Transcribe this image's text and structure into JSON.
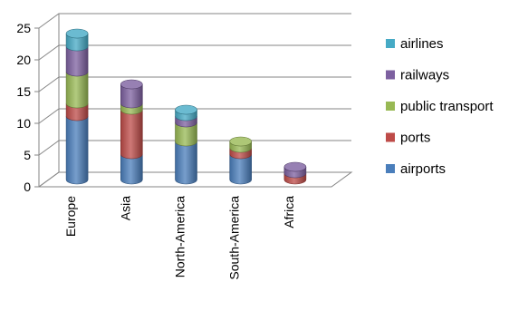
{
  "chart_data": {
    "type": "bar",
    "stacked": true,
    "categories": [
      "Europe",
      "Asia",
      "North-America",
      "South-America",
      "Africa"
    ],
    "series": [
      {
        "name": "airports",
        "values": [
          10,
          4,
          6,
          4,
          0
        ],
        "color": "#4a7ebb"
      },
      {
        "name": "ports",
        "values": [
          2,
          7,
          0,
          1,
          1
        ],
        "color": "#be4b48"
      },
      {
        "name": "public transport",
        "values": [
          5,
          1,
          3,
          1,
          0
        ],
        "color": "#98b954"
      },
      {
        "name": "railways",
        "values": [
          4,
          3,
          1,
          0,
          1
        ],
        "color": "#7d60a0"
      },
      {
        "name": "airlines",
        "values": [
          2,
          0,
          1,
          0,
          0
        ],
        "color": "#46aac5"
      }
    ],
    "ylim": [
      0,
      25
    ],
    "yticks": [
      0,
      5,
      10,
      15,
      20,
      25
    ],
    "grid": true,
    "legend": "right",
    "legend_order": [
      "airlines",
      "railways",
      "public transport",
      "ports",
      "airports"
    ]
  }
}
